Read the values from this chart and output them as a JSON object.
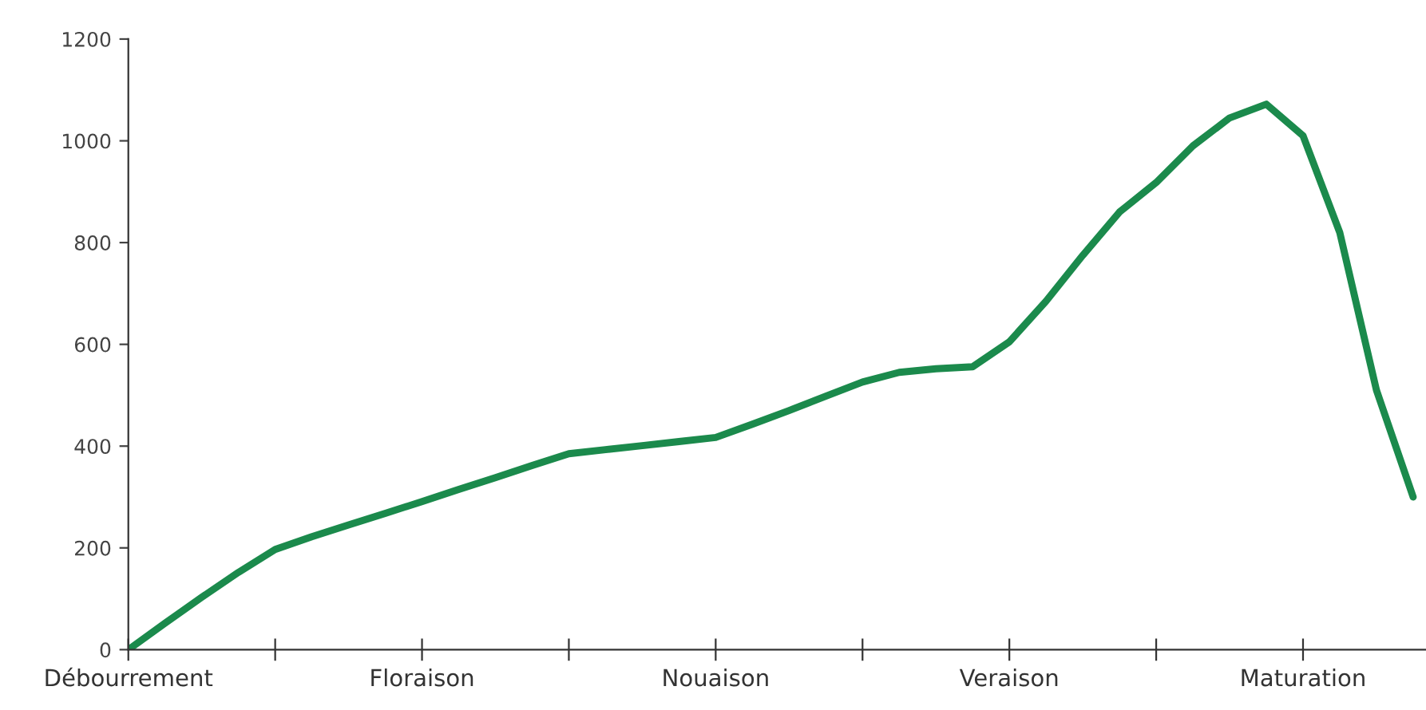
{
  "chart_data": {
    "type": "line",
    "color": "#1b8a4c",
    "categories": [
      "Débourrement",
      null,
      null,
      null,
      null,
      null,
      null,
      null,
      "Floraison",
      null,
      null,
      null,
      null,
      null,
      null,
      null,
      "Nouaison",
      null,
      null,
      null,
      null,
      null,
      null,
      null,
      "Veraison",
      null,
      null,
      null,
      null,
      null,
      null,
      null,
      "Maturation",
      null,
      null,
      null
    ],
    "values": [
      0,
      52,
      103,
      152,
      197,
      222,
      245,
      268,
      291,
      315,
      338,
      362,
      385,
      393,
      401,
      409,
      417,
      443,
      470,
      498,
      526,
      545,
      552,
      556,
      605,
      685,
      775,
      860,
      918,
      990,
      1045,
      1072,
      1010,
      820,
      510,
      300
    ],
    "ylim": [
      0,
      1200
    ],
    "yticks": [
      0,
      200,
      400,
      600,
      800,
      1000,
      1200
    ],
    "grid": false,
    "marker": "none",
    "line_style": "solid"
  }
}
